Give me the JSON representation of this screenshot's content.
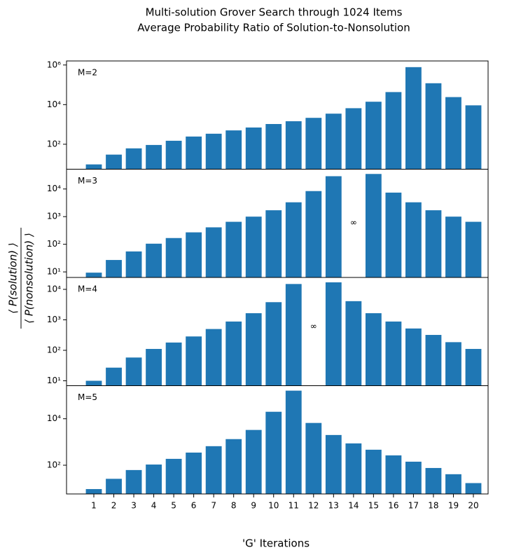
{
  "chart_data": {
    "type": "bar",
    "title": "Multi-solution Grover Search through 1024 Items",
    "subtitle": "Average Probability Ratio of Solution-to-Nonsolution",
    "x_label": "'G' Iterations",
    "y_label_numerator": "⟨ P(solution) ⟩",
    "y_label_denominator": "⟨ P(nonsolution) ⟩",
    "log_scale": true,
    "color": "#1f77b4",
    "categories": [
      1,
      2,
      3,
      4,
      5,
      6,
      7,
      8,
      9,
      10,
      11,
      12,
      13,
      14,
      15,
      16,
      17,
      18,
      19,
      20
    ],
    "panels": [
      {
        "label": "M=2",
        "values": [
          9.6,
          30,
          62,
          92,
          150,
          245,
          340,
          500,
          700,
          1050,
          1450,
          2150,
          3500,
          6600,
          14000,
          43000,
          780000,
          120000,
          24000,
          9200
        ],
        "ylim": [
          5.5,
          1600000
        ],
        "yticks": [
          {
            "value": 100,
            "label": "10²"
          },
          {
            "value": 10000,
            "label": "10⁴"
          },
          {
            "value": 1000000,
            "label": "10⁶"
          }
        ]
      },
      {
        "label": "M=3",
        "values": [
          9.4,
          27,
          55,
          105,
          168,
          270,
          410,
          650,
          1000,
          1700,
          3300,
          8400,
          29000,
          null,
          35000,
          7400,
          3300,
          1700,
          1000,
          650
        ],
        "ylim": [
          6.3,
          52000
        ],
        "yticks": [
          {
            "value": 10,
            "label": "10¹"
          },
          {
            "value": 100,
            "label": "10²"
          },
          {
            "value": 1000,
            "label": "10³"
          },
          {
            "value": 10000,
            "label": "10⁴"
          }
        ],
        "annotations": [
          {
            "text": "∞",
            "x": 14,
            "y": 600
          }
        ]
      },
      {
        "label": "M=4",
        "values": [
          10,
          27,
          58,
          111,
          180,
          285,
          500,
          880,
          1650,
          3800,
          15000,
          null,
          17000,
          4100,
          1650,
          880,
          520,
          320,
          185,
          111
        ],
        "ylim": [
          6.9,
          24600
        ],
        "yticks": [
          {
            "value": 10,
            "label": "10¹"
          },
          {
            "value": 100,
            "label": "10²"
          },
          {
            "value": 1000,
            "label": "10³"
          },
          {
            "value": 10000,
            "label": "10⁴"
          }
        ],
        "annotations": [
          {
            "text": "∞",
            "x": 12,
            "y": 600
          }
        ]
      },
      {
        "label": "M=5",
        "values": [
          9.4,
          26,
          62,
          107,
          188,
          350,
          660,
          1330,
          3300,
          20000,
          162000,
          6600,
          2000,
          870,
          465,
          265,
          142,
          76,
          41,
          17
        ],
        "ylim": [
          5.8,
          265000
        ],
        "yticks": [
          {
            "value": 100,
            "label": "10²"
          },
          {
            "value": 10000,
            "label": "10⁴"
          }
        ]
      }
    ]
  }
}
